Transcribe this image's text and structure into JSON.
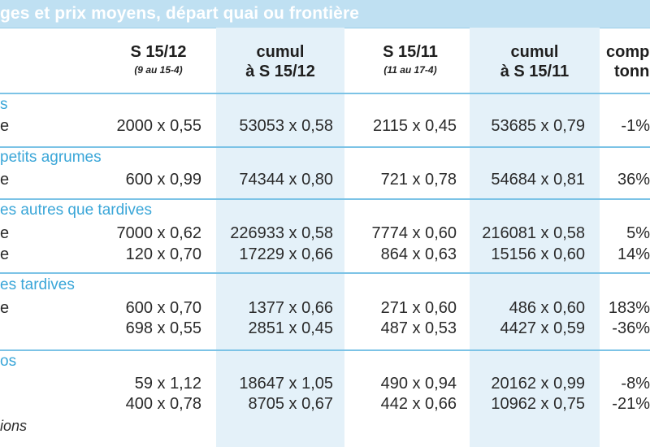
{
  "title": "ges et prix moyens, départ quai ou frontière",
  "columns": [
    {
      "label": "S 15/12",
      "sub": "(9 au 15-4)"
    },
    {
      "label": "cumul",
      "label2": "à S 15/12"
    },
    {
      "label": "S 15/11",
      "sub": "(11 au 17-4)"
    },
    {
      "label": "cumul",
      "label2": "à S 15/11"
    },
    {
      "label": "comp",
      "label2": "tonn"
    }
  ],
  "sections": [
    {
      "title": "s",
      "rows": [
        {
          "label": "e",
          "cells": [
            "2000 x 0,55",
            "53053 x 0,58",
            "2115 x 0,45",
            "53685 x 0,79",
            "-1%"
          ]
        }
      ]
    },
    {
      "title": "petits agrumes",
      "rows": [
        {
          "label": "e",
          "cells": [
            "600 x 0,99",
            "74344 x 0,80",
            "721 x 0,78",
            "54684 x 0,81",
            "36%"
          ]
        }
      ]
    },
    {
      "title": "es autres que tardives",
      "rows": [
        {
          "label": "e",
          "cells": [
            "7000 x 0,62",
            "226933 x 0,58",
            "7774 x 0,60",
            "216081 x 0,58",
            "5%"
          ]
        },
        {
          "label": "e",
          "cells": [
            "120 x 0,70",
            "17229 x 0,66",
            "864 x 0,63",
            "15156 x 0,60",
            "14%"
          ]
        }
      ]
    },
    {
      "title": "es tardives",
      "rows": [
        {
          "label": "e",
          "cells": [
            "600 x 0,70",
            "1377 x 0,66",
            "271 x 0,60",
            "486 x 0,60",
            "183%"
          ]
        },
        {
          "label": "",
          "cells": [
            "698 x 0,55",
            "2851 x 0,45",
            "487 x 0,53",
            "4427 x 0,59",
            "-36%"
          ]
        }
      ]
    },
    {
      "title": "os",
      "rows": [
        {
          "label": "",
          "cells": [
            "59 x 1,12",
            "18647 x 1,05",
            "490 x 0,94",
            "20162 x 0,99",
            "-8%"
          ]
        },
        {
          "label": "",
          "cells": [
            "400 x 0,78",
            "8705 x 0,67",
            "442 x 0,66",
            "10962 x 0,75",
            "-21%"
          ]
        }
      ]
    }
  ],
  "footnote": "ions"
}
